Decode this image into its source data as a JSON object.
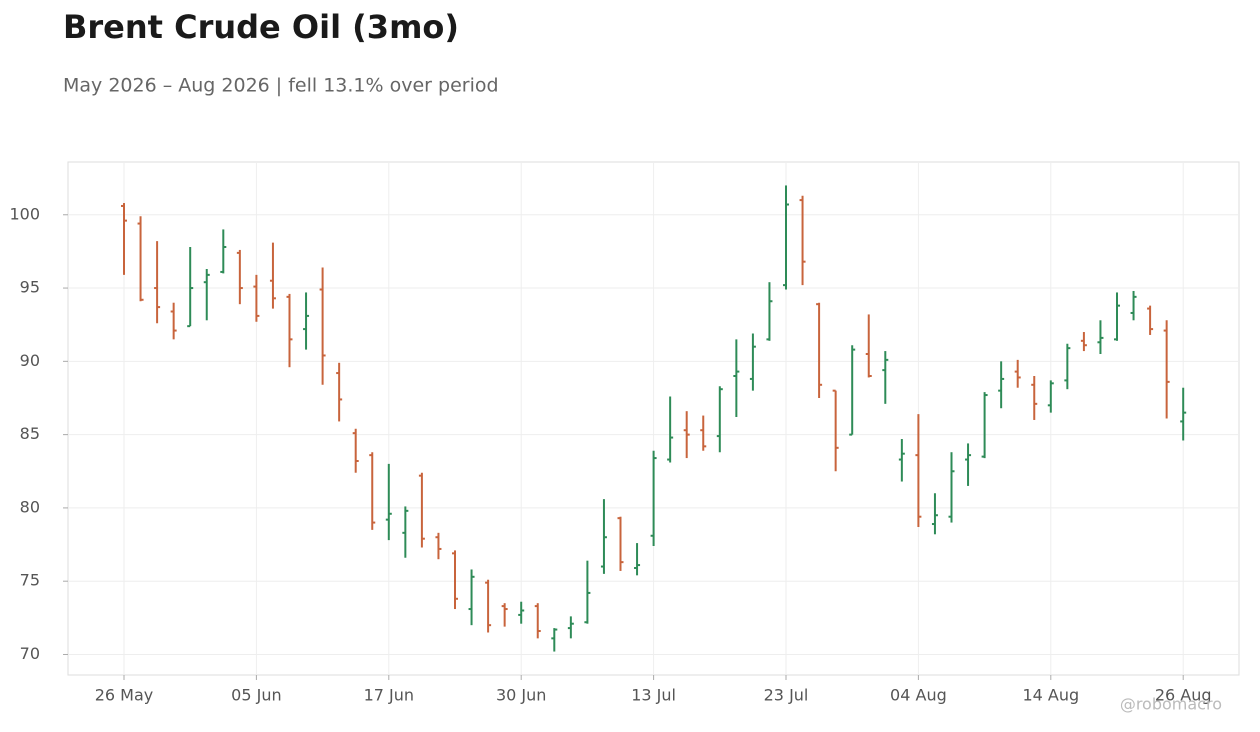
{
  "chart_data": {
    "type": "ohlc",
    "title": "Brent Crude Oil (3mo)",
    "subtitle": "May 2026 – Aug 2026 | fell 13.1% over period",
    "credit": "@robomacro",
    "categories": [
      "26 May",
      null,
      null,
      null,
      null,
      null,
      null,
      null,
      "05 Jun",
      null,
      null,
      null,
      null,
      null,
      null,
      null,
      "17 Jun",
      null,
      null,
      null,
      null,
      null,
      null,
      null,
      "30 Jun",
      null,
      null,
      null,
      null,
      null,
      null,
      null,
      "13 Jul",
      null,
      null,
      null,
      null,
      null,
      null,
      null,
      "23 Jul",
      null,
      null,
      null,
      null,
      null,
      null,
      null,
      "04 Aug",
      null,
      null,
      null,
      null,
      null,
      null,
      null,
      "14 Aug",
      null,
      null,
      null,
      null,
      null,
      null,
      null,
      "26 Aug"
    ],
    "series": {
      "open": [
        100.6,
        99.4,
        95.0,
        93.4,
        92.4,
        95.4,
        96.1,
        97.4,
        95.1,
        95.5,
        94.4,
        92.2,
        94.9,
        89.2,
        85.1,
        83.6,
        79.2,
        78.3,
        82.2,
        78.0,
        76.9,
        73.1,
        74.9,
        73.3,
        72.7,
        73.3,
        71.1,
        71.8,
        72.2,
        76.0,
        79.3,
        75.9,
        78.1,
        83.3,
        85.3,
        85.3,
        84.9,
        89.0,
        88.8,
        91.5,
        95.2,
        101.0,
        93.9,
        88.0,
        85.0,
        90.5,
        89.4,
        83.3,
        83.6,
        78.9,
        79.4,
        83.3,
        83.5,
        88.0,
        89.3,
        88.4,
        87.0,
        88.7,
        91.4,
        91.3,
        91.5,
        93.3,
        93.6,
        92.1,
        85.9
      ],
      "high": [
        100.8,
        99.9,
        98.2,
        94.0,
        97.8,
        96.3,
        99.0,
        97.6,
        95.9,
        98.1,
        94.6,
        94.7,
        96.4,
        89.9,
        85.4,
        83.8,
        83.0,
        80.1,
        82.4,
        78.3,
        77.1,
        75.8,
        75.1,
        73.5,
        73.6,
        73.5,
        71.8,
        72.6,
        76.4,
        80.6,
        79.4,
        77.6,
        83.9,
        87.6,
        86.6,
        86.3,
        88.3,
        91.5,
        91.9,
        95.4,
        102.0,
        101.3,
        94.0,
        88.0,
        91.1,
        93.2,
        90.7,
        84.7,
        86.4,
        81.0,
        83.8,
        84.4,
        87.9,
        90.0,
        90.1,
        89.0,
        88.7,
        91.2,
        92.0,
        92.8,
        94.7,
        94.8,
        93.8,
        92.8,
        88.2
      ],
      "low": [
        95.9,
        94.1,
        92.6,
        91.5,
        92.4,
        92.8,
        96.0,
        93.9,
        92.7,
        93.6,
        89.6,
        90.8,
        88.4,
        85.9,
        82.4,
        78.5,
        77.8,
        76.6,
        77.3,
        76.5,
        73.1,
        72.0,
        71.5,
        71.9,
        72.1,
        71.1,
        70.2,
        71.1,
        72.1,
        75.5,
        75.7,
        75.4,
        77.4,
        83.1,
        83.4,
        83.9,
        83.8,
        86.2,
        88.0,
        91.4,
        94.9,
        95.2,
        87.5,
        82.5,
        85.0,
        88.9,
        87.1,
        81.8,
        78.7,
        78.2,
        79.0,
        81.5,
        83.4,
        86.8,
        88.2,
        86.0,
        86.5,
        88.1,
        90.7,
        90.5,
        91.4,
        92.8,
        91.8,
        86.1,
        84.6
      ],
      "close": [
        99.6,
        94.2,
        93.7,
        92.1,
        95.0,
        95.9,
        97.8,
        95.0,
        93.1,
        94.3,
        91.5,
        93.1,
        90.4,
        87.4,
        83.2,
        79.0,
        79.6,
        79.8,
        77.9,
        77.2,
        73.8,
        75.3,
        72.0,
        73.1,
        73.0,
        71.6,
        71.7,
        72.1,
        74.2,
        78.0,
        76.3,
        76.1,
        83.4,
        84.8,
        85.0,
        84.2,
        88.1,
        89.3,
        91.0,
        94.1,
        100.7,
        96.8,
        88.4,
        84.1,
        90.8,
        89.0,
        90.1,
        83.7,
        79.4,
        79.5,
        82.5,
        83.6,
        87.7,
        88.8,
        88.9,
        87.1,
        88.5,
        90.9,
        91.1,
        91.6,
        93.8,
        94.4,
        92.2,
        88.6,
        86.5
      ]
    },
    "up_color": "#2e8b57",
    "down_color": "#c8643c",
    "ylim": [
      68.6,
      103.6
    ],
    "yticks": [
      70,
      75,
      80,
      85,
      90,
      95,
      100
    ],
    "grid": true
  }
}
